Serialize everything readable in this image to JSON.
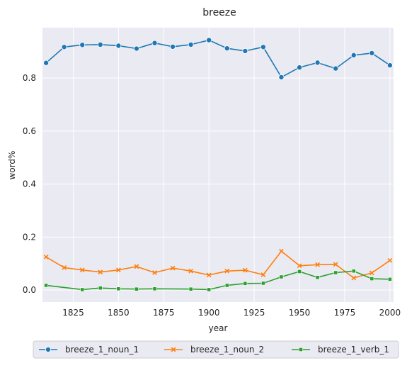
{
  "chart_data": {
    "type": "line",
    "title": "breeze",
    "xlabel": "year",
    "ylabel": "word%",
    "xlim": [
      1808,
      2002
    ],
    "ylim": [
      -0.045,
      0.99
    ],
    "xticks": [
      1825,
      1850,
      1875,
      1900,
      1925,
      1950,
      1975,
      2000
    ],
    "yticks": [
      0.0,
      0.2,
      0.4,
      0.6,
      0.8
    ],
    "ytick_labels": [
      "0.0",
      "0.2",
      "0.4",
      "0.6",
      "0.8"
    ],
    "grid": true,
    "legend_position": "bottom",
    "x": [
      1810,
      1820,
      1830,
      1840,
      1850,
      1860,
      1870,
      1880,
      1890,
      1900,
      1910,
      1920,
      1930,
      1940,
      1950,
      1960,
      1970,
      1980,
      1990,
      2000
    ],
    "series": [
      {
        "name": "breeze_1_noun_1",
        "color": "#1f77b4",
        "marker": "circle",
        "values": [
          0.857,
          0.917,
          0.925,
          0.926,
          0.922,
          0.911,
          0.932,
          0.918,
          0.926,
          0.943,
          0.912,
          0.902,
          0.917,
          0.803,
          0.84,
          0.858,
          0.836,
          0.886,
          0.894,
          0.848
        ]
      },
      {
        "name": "breeze_1_noun_2",
        "color": "#ff7f0e",
        "marker": "x",
        "values": [
          0.125,
          0.085,
          0.076,
          0.068,
          0.076,
          0.089,
          0.066,
          0.083,
          0.072,
          0.057,
          0.072,
          0.075,
          0.058,
          0.147,
          0.092,
          0.096,
          0.097,
          0.046,
          0.065,
          0.112
        ]
      },
      {
        "name": "breeze_1_verb_1",
        "color": "#2ca02c",
        "marker": "square",
        "values": [
          0.018,
          null,
          0.002,
          0.008,
          0.005,
          0.004,
          0.005,
          null,
          0.004,
          0.002,
          0.018,
          0.025,
          0.026,
          0.05,
          0.07,
          0.048,
          0.066,
          0.072,
          0.043,
          0.041
        ]
      }
    ]
  }
}
